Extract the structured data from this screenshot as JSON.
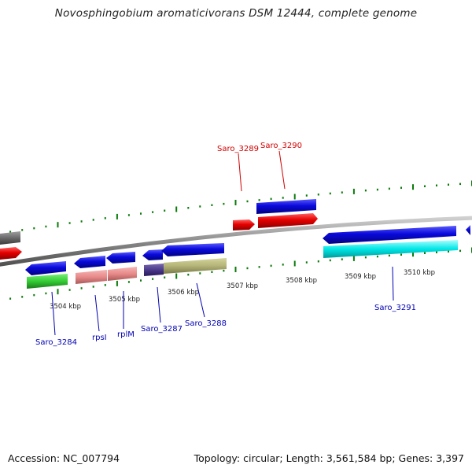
{
  "header": {
    "title": "Novosphingobium aromaticivorans DSM 12444, complete genome"
  },
  "footer": {
    "accession": "Accession: NC_007794",
    "summary": "Topology: circular; Length: 3,561,584 bp; Genes: 3,397"
  },
  "axis": {
    "ticks": [
      "3504 kbp",
      "3505 kbp",
      "3506 kbp",
      "3507 kbp",
      "3508 kbp",
      "3509 kbp",
      "3510 kbp"
    ]
  },
  "gene_labels": {
    "saro_3284": "Saro_3284",
    "rpsI": "rpsI",
    "rplM": "rplM",
    "saro_3287": "Saro_3287",
    "saro_3288": "Saro_3288",
    "saro_3289": "Saro_3289",
    "saro_3290": "Saro_3290",
    "saro_3291": "Saro_3291"
  },
  "colors": {
    "forward_blue": "#0a0adc",
    "reverse_red": "#e60000",
    "green": "#33cc33",
    "pink": "#e88a8a",
    "khaki": "#b4b478",
    "cyan": "#00e6e6",
    "gray": "#6a6a6a",
    "tick_green": "#0a7a0a",
    "label_blue": "#0000b4",
    "label_red": "#d20000"
  }
}
